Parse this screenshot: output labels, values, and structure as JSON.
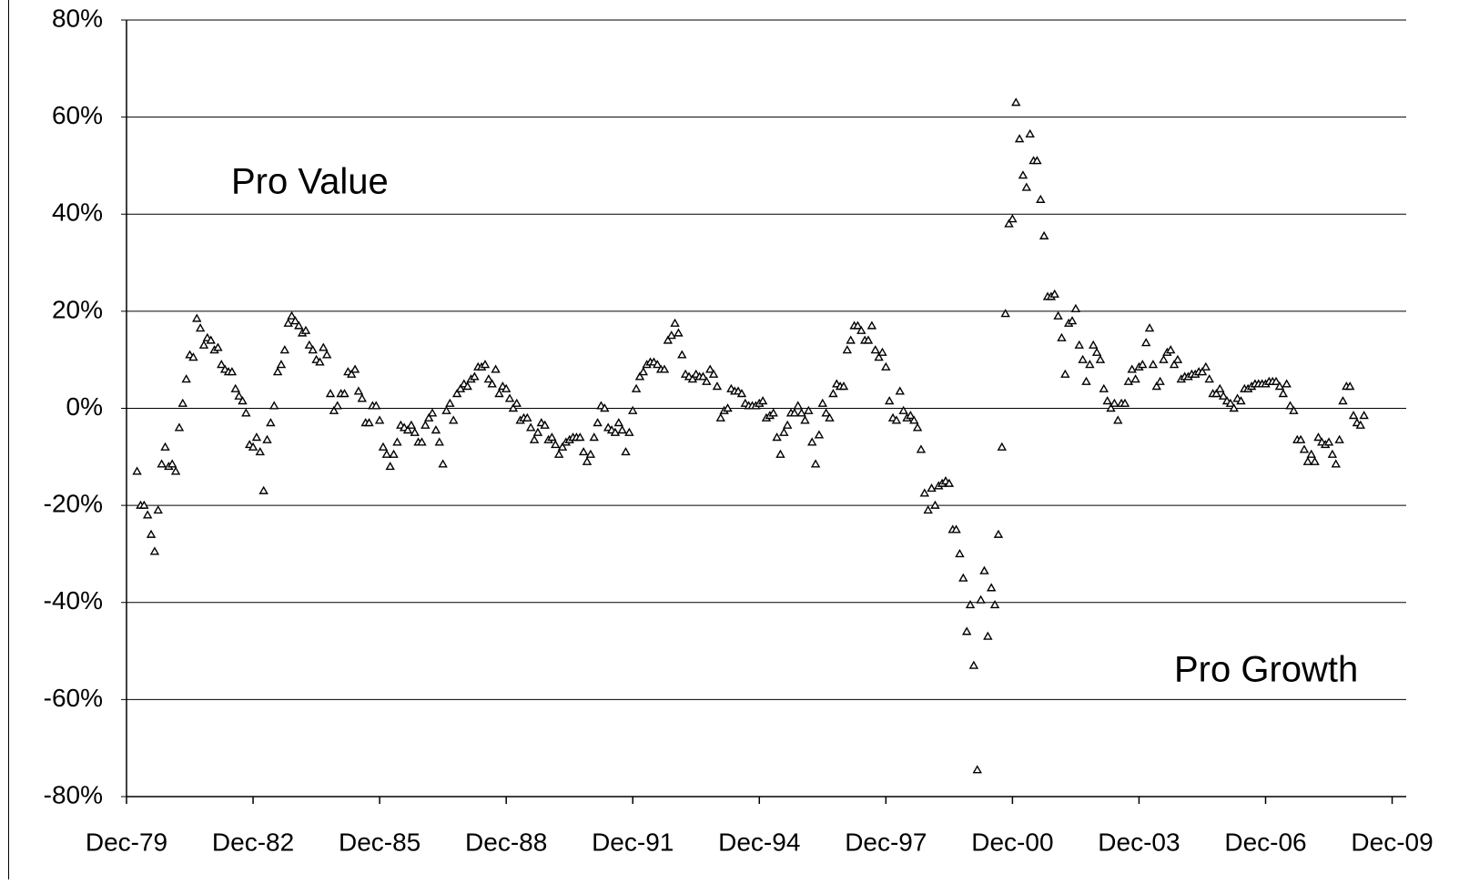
{
  "chart_data": {
    "type": "scatter",
    "annotations": [
      "Pro Value",
      "Pro Growth"
    ],
    "xlim": [
      "1979-12",
      "2010-04"
    ],
    "xticks": [
      {
        "value": "1979-12",
        "label": "Dec-79"
      },
      {
        "value": "1982-12",
        "label": "Dec-82"
      },
      {
        "value": "1985-12",
        "label": "Dec-85"
      },
      {
        "value": "1988-12",
        "label": "Dec-88"
      },
      {
        "value": "1991-12",
        "label": "Dec-91"
      },
      {
        "value": "1994-12",
        "label": "Dec-94"
      },
      {
        "value": "1997-12",
        "label": "Dec-97"
      },
      {
        "value": "2000-12",
        "label": "Dec-00"
      },
      {
        "value": "2003-12",
        "label": "Dec-03"
      },
      {
        "value": "2006-12",
        "label": "Dec-06"
      },
      {
        "value": "2009-12",
        "label": "Dec-09"
      }
    ],
    "ylim": [
      -80,
      80
    ],
    "yticks": [
      {
        "value": -80,
        "label": "-80%"
      },
      {
        "value": -60,
        "label": "-60%"
      },
      {
        "value": -40,
        "label": "-40%"
      },
      {
        "value": -20,
        "label": "-20%"
      },
      {
        "value": 0,
        "label": "0%"
      },
      {
        "value": 20,
        "label": "20%"
      },
      {
        "value": 40,
        "label": "40%"
      },
      {
        "value": 60,
        "label": "60%"
      },
      {
        "value": 80,
        "label": "80%"
      }
    ],
    "grid": true,
    "color": "#000000",
    "x": [
      "1980-03",
      "1980-04",
      "1980-05",
      "1980-06",
      "1980-07",
      "1980-08",
      "1980-09",
      "1980-10",
      "1980-11",
      "1980-12",
      "1981-01",
      "1981-02",
      "1981-03",
      "1981-04",
      "1981-05",
      "1981-06",
      "1981-07",
      "1981-08",
      "1981-09",
      "1981-10",
      "1981-11",
      "1981-12",
      "1982-01",
      "1982-02",
      "1982-03",
      "1982-04",
      "1982-05",
      "1982-06",
      "1982-07",
      "1982-08",
      "1982-09",
      "1982-10",
      "1982-11",
      "1982-12",
      "1983-01",
      "1983-02",
      "1983-03",
      "1983-04",
      "1983-05",
      "1983-06",
      "1983-07",
      "1983-08",
      "1983-09",
      "1983-10",
      "1983-11",
      "1983-12",
      "1984-01",
      "1984-02",
      "1984-03",
      "1984-04",
      "1984-05",
      "1984-06",
      "1984-07",
      "1984-08",
      "1984-09",
      "1984-10",
      "1984-11",
      "1984-12",
      "1985-01",
      "1985-02",
      "1985-03",
      "1985-04",
      "1985-05",
      "1985-06",
      "1985-07",
      "1985-08",
      "1985-09",
      "1985-10",
      "1985-11",
      "1985-12",
      "1986-01",
      "1986-02",
      "1986-03",
      "1986-04",
      "1986-05",
      "1986-06",
      "1986-07",
      "1986-08",
      "1986-09",
      "1986-10",
      "1986-11",
      "1986-12",
      "1987-01",
      "1987-02",
      "1987-03",
      "1987-04",
      "1987-05",
      "1987-06",
      "1987-07",
      "1987-08",
      "1987-09",
      "1987-10",
      "1987-11",
      "1987-12",
      "1988-01",
      "1988-02",
      "1988-03",
      "1988-04",
      "1988-05",
      "1988-06",
      "1988-07",
      "1988-08",
      "1988-09",
      "1988-10",
      "1988-11",
      "1988-12",
      "1989-01",
      "1989-02",
      "1989-03",
      "1989-04",
      "1989-05",
      "1989-06",
      "1989-07",
      "1989-08",
      "1989-09",
      "1989-10",
      "1989-11",
      "1989-12",
      "1990-01",
      "1990-02",
      "1990-03",
      "1990-04",
      "1990-05",
      "1990-06",
      "1990-07",
      "1990-08",
      "1990-09",
      "1990-10",
      "1990-11",
      "1990-12",
      "1991-01",
      "1991-02",
      "1991-03",
      "1991-04",
      "1991-05",
      "1991-06",
      "1991-07",
      "1991-08",
      "1991-09",
      "1991-10",
      "1991-11",
      "1991-12",
      "1992-01",
      "1992-02",
      "1992-03",
      "1992-04",
      "1992-05",
      "1992-06",
      "1992-07",
      "1992-08",
      "1992-09",
      "1992-10",
      "1992-11",
      "1992-12",
      "1993-01",
      "1993-02",
      "1993-03",
      "1993-04",
      "1993-05",
      "1993-06",
      "1993-07",
      "1993-08",
      "1993-09",
      "1993-10",
      "1993-11",
      "1993-12",
      "1994-01",
      "1994-02",
      "1994-03",
      "1994-04",
      "1994-05",
      "1994-06",
      "1994-07",
      "1994-08",
      "1994-09",
      "1994-10",
      "1994-11",
      "1994-12",
      "1995-01",
      "1995-02",
      "1995-03",
      "1995-04",
      "1995-05",
      "1995-06",
      "1995-07",
      "1995-08",
      "1995-09",
      "1995-10",
      "1995-11",
      "1995-12",
      "1996-01",
      "1996-02",
      "1996-03",
      "1996-04",
      "1996-05",
      "1996-06",
      "1996-07",
      "1996-08",
      "1996-09",
      "1996-10",
      "1996-11",
      "1996-12",
      "1997-01",
      "1997-02",
      "1997-03",
      "1997-04",
      "1997-05",
      "1997-06",
      "1997-07",
      "1997-08",
      "1997-09",
      "1997-10",
      "1997-11",
      "1997-12",
      "1998-01",
      "1998-02",
      "1998-03",
      "1998-04",
      "1998-05",
      "1998-06",
      "1998-07",
      "1998-08",
      "1998-09",
      "1998-10",
      "1998-11",
      "1998-12",
      "1999-01",
      "1999-02",
      "1999-03",
      "1999-04",
      "1999-05",
      "1999-06",
      "1999-07",
      "1999-08",
      "1999-09",
      "1999-10",
      "1999-11",
      "1999-12",
      "2000-01",
      "2000-02",
      "2000-03",
      "2000-04",
      "2000-05",
      "2000-06",
      "2000-07",
      "2000-08",
      "2000-09",
      "2000-10",
      "2000-11",
      "2000-12",
      "2001-01",
      "2001-02",
      "2001-03",
      "2001-04",
      "2001-05",
      "2001-06",
      "2001-07",
      "2001-08",
      "2001-09",
      "2001-10",
      "2001-11",
      "2001-12",
      "2002-01",
      "2002-02",
      "2002-03",
      "2002-04",
      "2002-05",
      "2002-06",
      "2002-07",
      "2002-08",
      "2002-09",
      "2002-10",
      "2002-11",
      "2002-12",
      "2003-01",
      "2003-02",
      "2003-03",
      "2003-04",
      "2003-05",
      "2003-06",
      "2003-07",
      "2003-08",
      "2003-09",
      "2003-10",
      "2003-11",
      "2003-12",
      "2004-01",
      "2004-02",
      "2004-03",
      "2004-04",
      "2004-05",
      "2004-06",
      "2004-07",
      "2004-08",
      "2004-09",
      "2004-10",
      "2004-11",
      "2004-12",
      "2005-01",
      "2005-02",
      "2005-03",
      "2005-04",
      "2005-05",
      "2005-06",
      "2005-07",
      "2005-08",
      "2005-09",
      "2005-10",
      "2005-11",
      "2005-12",
      "2006-01",
      "2006-02",
      "2006-03",
      "2006-04",
      "2006-05",
      "2006-06",
      "2006-07",
      "2006-08",
      "2006-09",
      "2006-10",
      "2006-11",
      "2006-12",
      "2007-01",
      "2007-02",
      "2007-03",
      "2007-04",
      "2007-05",
      "2007-06",
      "2007-07",
      "2007-08",
      "2007-09",
      "2007-10",
      "2007-11",
      "2007-12",
      "2008-01",
      "2008-02",
      "2008-03",
      "2008-04",
      "2008-05",
      "2008-06",
      "2008-07",
      "2008-08",
      "2008-09",
      "2008-10",
      "2008-11",
      "2008-12",
      "2009-01",
      "2009-02",
      "2009-03",
      "2009-04"
    ],
    "values": [
      -13,
      -20,
      -20,
      -22,
      -26,
      -29.5,
      -21,
      -11.5,
      -8,
      -12,
      -11.5,
      -13,
      -4,
      1,
      6,
      11,
      10.5,
      18.5,
      16.5,
      13,
      14.5,
      14,
      12,
      12.5,
      9,
      8,
      7.5,
      7.5,
      4,
      2.5,
      1.5,
      -1,
      -7.5,
      -8,
      -6,
      -9,
      -17,
      -6.5,
      -3,
      0.5,
      7.5,
      9,
      12,
      17.5,
      19,
      18,
      17,
      15.5,
      16,
      13,
      12,
      10,
      9.5,
      12.5,
      11,
      3,
      -0.5,
      0.5,
      3,
      3,
      7.5,
      7,
      8,
      3.5,
      2,
      -3,
      -3,
      0.5,
      0.5,
      -2.5,
      -8,
      -9.5,
      -12,
      -9.5,
      -7,
      -3.5,
      -4,
      -4.5,
      -3.5,
      -5,
      -7,
      -7,
      -3.5,
      -2,
      -1,
      -4.5,
      -7,
      -11.5,
      -0.5,
      1,
      -2.5,
      3,
      4,
      5,
      4.5,
      6,
      6.5,
      8.5,
      8.5,
      9,
      6,
      5,
      8,
      3,
      4.5,
      4,
      2,
      0,
      1,
      -2.5,
      -2,
      -2,
      -4,
      -6.5,
      -5,
      -3,
      -3.5,
      -6.5,
      -6,
      -7.5,
      -9.5,
      -8,
      -7,
      -6.5,
      -6,
      -6,
      -6,
      -9,
      -11,
      -9.5,
      -6,
      -3,
      0.5,
      0,
      -4,
      -4.5,
      -5,
      -3,
      -4.5,
      -9,
      -5,
      -0.5,
      4,
      6.5,
      7.5,
      9,
      9.5,
      9.5,
      9,
      8,
      8,
      14,
      15,
      17.5,
      15.5,
      11,
      7,
      6.5,
      6,
      7,
      6.5,
      6.5,
      5.5,
      8,
      7,
      4.5,
      -2,
      -0.5,
      0,
      4,
      3.5,
      3.5,
      3,
      1,
      0.5,
      0.5,
      0.5,
      1,
      1.5,
      -2,
      -1.5,
      -1,
      -6,
      -9.5,
      -5,
      -3.5,
      -1,
      -1,
      0.5,
      -1,
      -2.5,
      -0.5,
      -7,
      -11.5,
      -5.5,
      1,
      -1,
      -2,
      3,
      5,
      4.5,
      4.5,
      12,
      14,
      17,
      17,
      16,
      14,
      14,
      17,
      12,
      10.5,
      11.5,
      8.5,
      1.5,
      -2,
      -2.5,
      3.5,
      -0.5,
      -2,
      -1.5,
      -2.5,
      -4,
      -8.5,
      -17.5,
      -21,
      -16.5,
      -20,
      -16,
      -15.5,
      -15,
      -15.5,
      -25,
      -25,
      -30,
      -35,
      -46,
      -40.5,
      -53,
      -74.5,
      -39.5,
      -33.5,
      -47,
      -37,
      -40.5,
      -26,
      -8,
      19.5,
      38,
      39,
      63,
      55.5,
      48,
      45.5,
      56.5,
      51,
      51,
      43,
      35.5,
      23,
      23,
      23.5,
      19,
      14.5,
      7,
      17.5,
      18,
      20.5,
      13,
      10,
      5.5,
      9,
      13,
      11.5,
      10,
      4,
      1.5,
      0,
      1,
      -2.5,
      1,
      1,
      5.5,
      8,
      6,
      8.5,
      9,
      13.5,
      16.5,
      9,
      4.5,
      5.5,
      10,
      11.5,
      12,
      9,
      10,
      6,
      6.5,
      6.5,
      7,
      7,
      7.5,
      7.5,
      8.5,
      6,
      3,
      3,
      4,
      2.5,
      1.5,
      1,
      0,
      2,
      1.5,
      4,
      4,
      4.5,
      5,
      5,
      5,
      5,
      5.5,
      5.5,
      5.5,
      4.5,
      3,
      5,
      0.5,
      -0.5,
      -6.5,
      -6.5,
      -8.5,
      -11,
      -9.5,
      -11,
      -6,
      -7,
      -7.5,
      -7,
      -9.5,
      -11.5,
      -6.5,
      1.5,
      4.5,
      4.5,
      -1.5,
      -3,
      -3.5,
      -1.5
    ]
  }
}
